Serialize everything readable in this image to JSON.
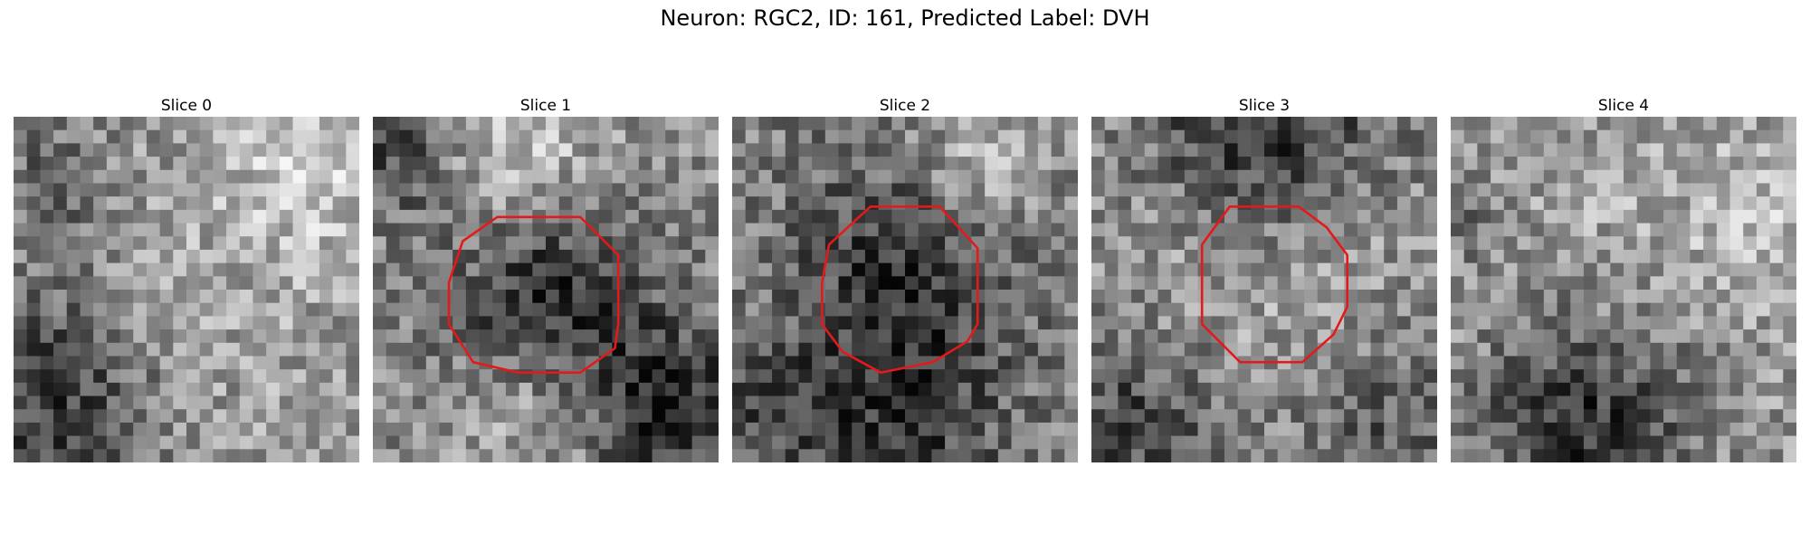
{
  "figure": {
    "title": "Neuron: RGC2, ID: 161, Predicted Label: DVH",
    "contour_color": "#e31a1c",
    "grid_size": 26,
    "panels": [
      {
        "title": "Slice 0",
        "pattern": "noise-bright-dark-bottom-left",
        "has_contour": false,
        "seed": 11,
        "base": 0.58,
        "blobs": [
          [
            0.12,
            0.82,
            0.22,
            -0.38
          ],
          [
            0.88,
            0.12,
            0.2,
            0.22
          ],
          [
            0.1,
            0.2,
            0.15,
            -0.18
          ],
          [
            0.5,
            0.6,
            0.3,
            0.08
          ]
        ]
      },
      {
        "title": "Slice 1",
        "pattern": "dark-soma-with-outline",
        "has_contour": true,
        "seed": 23,
        "base": 0.55,
        "blobs": [
          [
            0.5,
            0.52,
            0.2,
            -0.38
          ],
          [
            0.85,
            0.85,
            0.18,
            -0.42
          ],
          [
            0.08,
            0.1,
            0.14,
            -0.3
          ],
          [
            0.4,
            0.1,
            0.18,
            0.25
          ],
          [
            0.5,
            0.85,
            0.15,
            0.18
          ]
        ]
      },
      {
        "title": "Slice 2",
        "pattern": "dark-soma-with-outline",
        "has_contour": true,
        "seed": 37,
        "base": 0.5,
        "blobs": [
          [
            0.5,
            0.45,
            0.22,
            -0.32
          ],
          [
            0.5,
            0.92,
            0.2,
            -0.25
          ],
          [
            0.12,
            0.85,
            0.14,
            -0.2
          ],
          [
            0.72,
            0.15,
            0.14,
            0.25
          ]
        ]
      },
      {
        "title": "Slice 3",
        "pattern": "gray-soma-bright-ring",
        "has_contour": true,
        "seed": 41,
        "base": 0.52,
        "blobs": [
          [
            0.5,
            0.05,
            0.22,
            -0.42
          ],
          [
            0.5,
            0.45,
            0.16,
            -0.08
          ],
          [
            0.5,
            0.45,
            0.3,
            0.22
          ],
          [
            0.15,
            0.88,
            0.2,
            -0.28
          ],
          [
            0.85,
            0.85,
            0.18,
            -0.2
          ]
        ]
      },
      {
        "title": "Slice 4",
        "pattern": "noise-dark-bottom",
        "has_contour": false,
        "seed": 53,
        "base": 0.6,
        "blobs": [
          [
            0.38,
            0.9,
            0.22,
            -0.42
          ],
          [
            0.5,
            0.3,
            0.25,
            0.05
          ],
          [
            0.05,
            0.3,
            0.1,
            -0.15
          ],
          [
            0.9,
            0.3,
            0.15,
            0.12
          ]
        ]
      }
    ],
    "contours": {
      "1": [
        [
          0.36,
          0.29
        ],
        [
          0.26,
          0.36
        ],
        [
          0.22,
          0.48
        ],
        [
          0.22,
          0.6
        ],
        [
          0.29,
          0.71
        ],
        [
          0.42,
          0.74
        ],
        [
          0.6,
          0.74
        ],
        [
          0.7,
          0.67
        ],
        [
          0.71,
          0.6
        ],
        [
          0.71,
          0.4
        ],
        [
          0.6,
          0.29
        ]
      ],
      "2": [
        [
          0.4,
          0.26
        ],
        [
          0.28,
          0.37
        ],
        [
          0.26,
          0.48
        ],
        [
          0.26,
          0.6
        ],
        [
          0.32,
          0.68
        ],
        [
          0.43,
          0.74
        ],
        [
          0.58,
          0.71
        ],
        [
          0.68,
          0.65
        ],
        [
          0.71,
          0.6
        ],
        [
          0.71,
          0.38
        ],
        [
          0.6,
          0.26
        ]
      ],
      "3": [
        [
          0.4,
          0.26
        ],
        [
          0.32,
          0.37
        ],
        [
          0.32,
          0.6
        ],
        [
          0.43,
          0.71
        ],
        [
          0.61,
          0.71
        ],
        [
          0.7,
          0.63
        ],
        [
          0.74,
          0.55
        ],
        [
          0.74,
          0.4
        ],
        [
          0.68,
          0.32
        ],
        [
          0.6,
          0.26
        ]
      ]
    }
  }
}
